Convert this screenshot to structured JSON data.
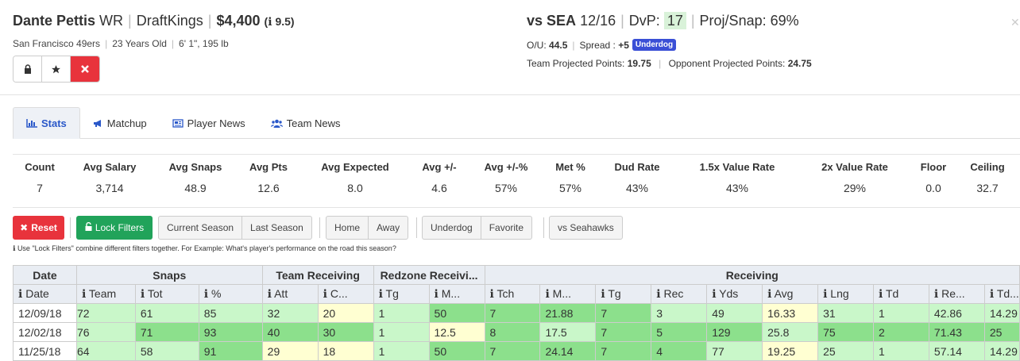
{
  "player": {
    "name": "Dante Pettis",
    "position": "WR",
    "site": "DraftKings",
    "salary": "$4,400",
    "rating": "9.5",
    "team": "San Francisco 49ers",
    "age": "23 Years Old",
    "size": "6' 1\", 195 lb"
  },
  "game": {
    "opponent": "vs SEA",
    "date": "12/16",
    "dvp_label": "DvP:",
    "dvp_value": "17",
    "proj_snap": "Proj/Snap: 69%",
    "ou_label": "O/U:",
    "ou_value": "44.5",
    "spread_label": "Spread :",
    "spread_value": "+5",
    "spread_badge": "Underdog",
    "team_proj_label": "Team Projected Points:",
    "team_proj_value": "19.75",
    "opp_proj_label": "Opponent Projected Points:",
    "opp_proj_value": "24.75"
  },
  "tabs": [
    {
      "label": "Stats",
      "icon": "bar-chart-icon"
    },
    {
      "label": "Matchup",
      "icon": "megaphone-icon"
    },
    {
      "label": "Player News",
      "icon": "newspaper-icon"
    },
    {
      "label": "Team News",
      "icon": "users-icon"
    }
  ],
  "summary": [
    {
      "label": "Count",
      "value": "7"
    },
    {
      "label": "Avg Salary",
      "value": "3,714"
    },
    {
      "label": "Avg Snaps",
      "value": "48.9"
    },
    {
      "label": "Avg Pts",
      "value": "12.6"
    },
    {
      "label": "Avg Expected",
      "value": "8.0"
    },
    {
      "label": "Avg +/-",
      "value": "4.6"
    },
    {
      "label": "Avg +/-%",
      "value": "57%"
    },
    {
      "label": "Met %",
      "value": "57%"
    },
    {
      "label": "Dud Rate",
      "value": "43%"
    },
    {
      "label": "1.5x Value Rate",
      "value": "43%"
    },
    {
      "label": "2x Value Rate",
      "value": "29%"
    },
    {
      "label": "Floor",
      "value": "0.0"
    },
    {
      "label": "Ceiling",
      "value": "32.7"
    }
  ],
  "filters": {
    "reset": "Reset",
    "lock": "Lock Filters",
    "current_season": "Current Season",
    "last_season": "Last Season",
    "home": "Home",
    "away": "Away",
    "underdog": "Underdog",
    "favorite": "Favorite",
    "vs_team": "vs Seahawks"
  },
  "hint": "Use \"Lock Filters\" combine different filters together. For Example: What's player's performance on the road this season?",
  "table": {
    "groups": [
      "Date",
      "Snaps",
      "Team Receiving",
      "Redzone Receivi...",
      "Receiving"
    ],
    "columns": [
      "Date",
      "Team",
      "Tot",
      "%",
      "Att",
      "C...",
      "Tg",
      "M...",
      "Tch",
      "M...",
      "Tg",
      "Rec",
      "Yds",
      "Avg",
      "Lng",
      "Td",
      "Re...",
      "Td..."
    ],
    "rows": [
      [
        "12/09/18",
        "72",
        "61",
        "85",
        "32",
        "20",
        "1",
        "50",
        "7",
        "21.88",
        "7",
        "3",
        "49",
        "16.33",
        "31",
        "1",
        "42.86",
        "14.29"
      ],
      [
        "12/02/18",
        "76",
        "71",
        "93",
        "40",
        "30",
        "1",
        "12.5",
        "8",
        "17.5",
        "7",
        "5",
        "129",
        "25.8",
        "75",
        "2",
        "71.43",
        "25"
      ],
      [
        "11/25/18",
        "64",
        "58",
        "91",
        "29",
        "18",
        "1",
        "50",
        "7",
        "24.14",
        "7",
        "4",
        "77",
        "19.25",
        "25",
        "1",
        "57.14",
        "14.29"
      ]
    ],
    "colors": {
      "light_green": "#c9f7c9",
      "green": "#8ce08c",
      "yellow": "#ffffd2",
      "white": "#ffffff"
    }
  },
  "accent": {
    "blue": "#2a58c9",
    "red": "#e8333c",
    "green": "#21a35a",
    "badge": "#3a4fd6"
  }
}
